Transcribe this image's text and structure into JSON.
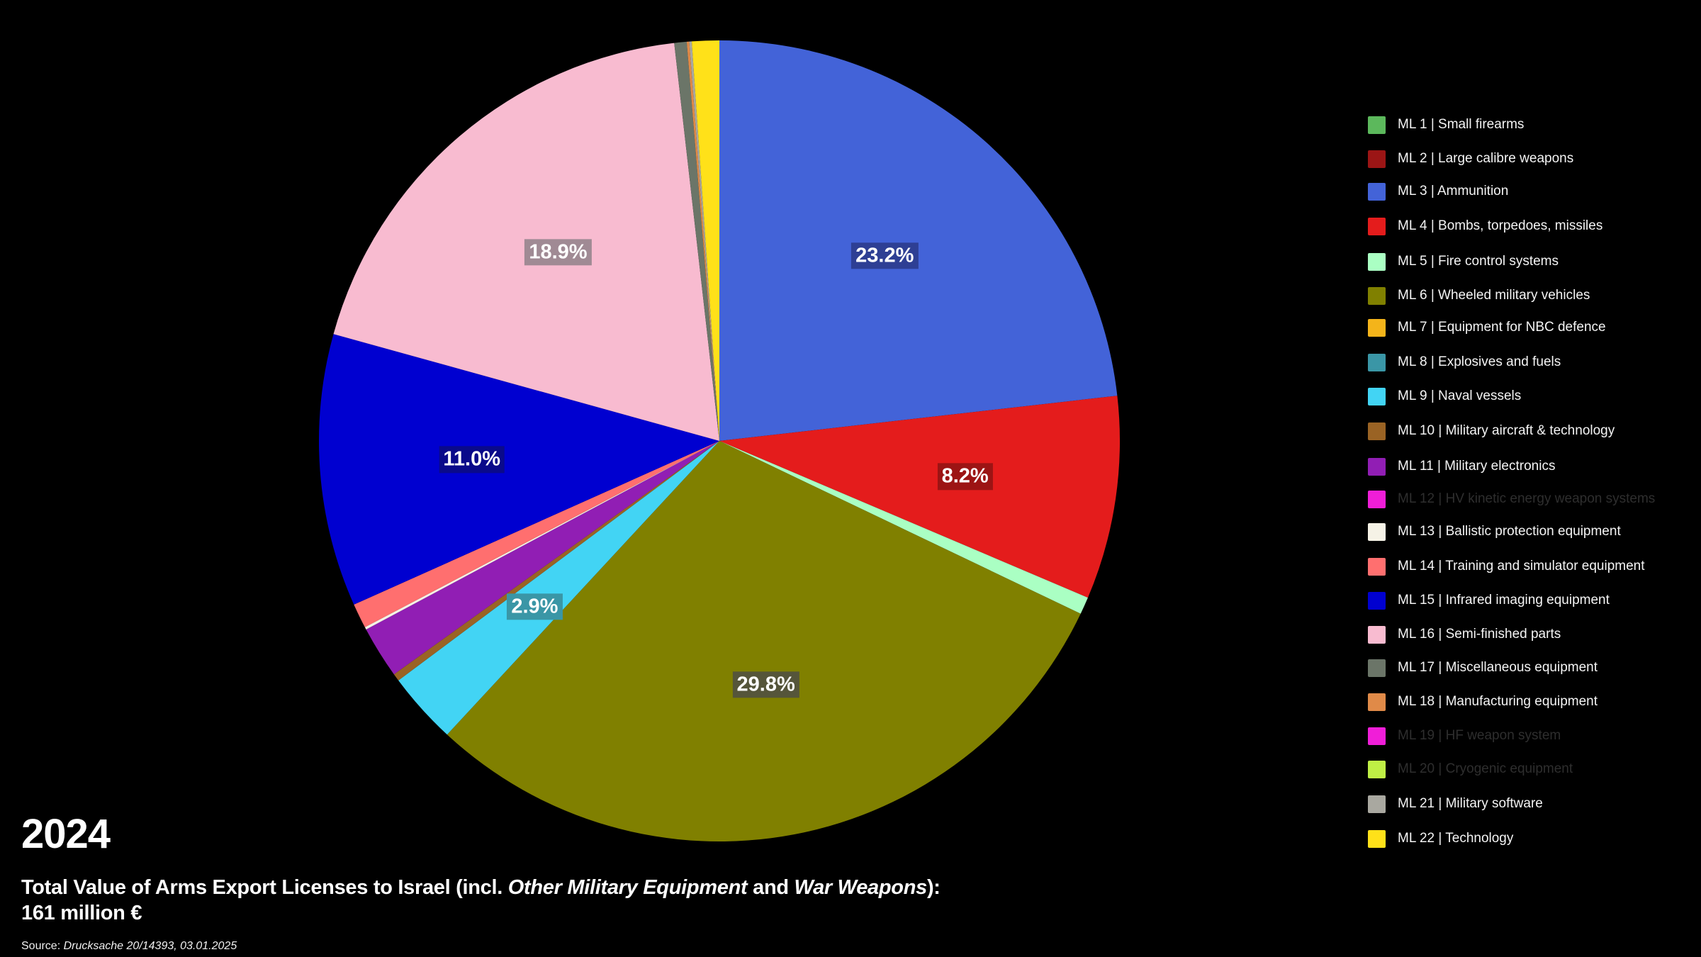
{
  "chart_data": {
    "type": "pie",
    "title": "Total Value of Arms Export Licenses to Israel (incl. Other Military Equipment and War Weapons): 161 million €",
    "year": "2024",
    "total": "161 million €",
    "start_angle_deg": 0,
    "direction": "clockwise",
    "legend_position": "right",
    "slices": [
      {
        "code": "ML 3",
        "label": "Ammunition",
        "value": 23.2,
        "color": "#4363d8",
        "show_label": true,
        "label_bg": "#2e3f94"
      },
      {
        "code": "ML 4",
        "label": "Bombs, torpedoes, missiles",
        "value": 8.2,
        "color": "#e41c1c",
        "show_label": true,
        "label_bg": "#9c1414"
      },
      {
        "code": "ML 5",
        "label": "Fire control systems",
        "value": 0.7,
        "color": "#aaffc3",
        "show_label": false
      },
      {
        "code": "ML 6",
        "label": "Wheeled military vehicles",
        "value": 29.8,
        "color": "#808000",
        "show_label": true,
        "label_bg": "#55553a"
      },
      {
        "code": "ML 9",
        "label": "Naval vessels",
        "value": 2.9,
        "color": "#42d4f4",
        "show_label": true,
        "label_bg": "#3a96a6"
      },
      {
        "code": "ML 10",
        "label": "Military aircraft & technology",
        "value": 0.3,
        "color": "#9a6324",
        "show_label": false
      },
      {
        "code": "ML 11",
        "label": "Military electronics",
        "value": 2.1,
        "color": "#911eb4",
        "show_label": false
      },
      {
        "code": "ML 13",
        "label": "Ballistic protection equipment",
        "value": 0.1,
        "color": "#f5f2e6",
        "show_label": false
      },
      {
        "code": "ML 14",
        "label": "Training and simulator equipment",
        "value": 1.0,
        "color": "#ff6f6f",
        "show_label": false
      },
      {
        "code": "ML 15",
        "label": "Infrared imaging equipment",
        "value": 11.0,
        "color": "#0000d0",
        "show_label": true,
        "label_bg": "#0a0a8a"
      },
      {
        "code": "ML 16",
        "label": "Semi-finished parts",
        "value": 18.9,
        "color": "#f8bbd0",
        "show_label": true,
        "label_bg": "#a08a94"
      },
      {
        "code": "ML 17",
        "label": "Miscellaneous equipment",
        "value": 0.5,
        "color": "#6b7568",
        "show_label": false
      },
      {
        "code": "ML 18",
        "label": "Manufacturing equipment",
        "value": 0.1,
        "color": "#e08a48",
        "show_label": false
      },
      {
        "code": "ML 21",
        "label": "Military software",
        "value": 0.1,
        "color": "#a9a8a0",
        "show_label": false
      },
      {
        "code": "ML 22",
        "label": "Technology",
        "value": 1.1,
        "color": "#ffe119",
        "show_label": false
      }
    ],
    "label_values": [
      "23.2%",
      "8.2%",
      "29.8%",
      "2.9%",
      "11.0%",
      "18.9%"
    ]
  },
  "legend": {
    "items": [
      {
        "text": "ML 1 | Small firearms",
        "color": "#5cb85c",
        "dim": false
      },
      {
        "text": "ML 2 | Large calibre weapons",
        "color": "#9b1515",
        "dim": false
      },
      {
        "text": "ML 3 | Ammunition",
        "color": "#4363d8",
        "dim": false
      },
      {
        "text": "ML 4 | Bombs, torpedoes, missiles",
        "color": "#e41c1c",
        "dim": false
      },
      {
        "text": "ML 5 | Fire control systems",
        "color": "#aaffc3",
        "dim": false
      },
      {
        "text": "ML 6 | Wheeled military vehicles",
        "color": "#808000",
        "dim": false
      },
      {
        "text": "ML 7 | Equipment for NBC defence",
        "color": "#f4b41a",
        "dim": false
      },
      {
        "text": "ML 8 | Explosives and fuels",
        "color": "#3a96a6",
        "dim": false
      },
      {
        "text": "ML 9 | Naval vessels",
        "color": "#42d4f4",
        "dim": false
      },
      {
        "text": "ML 10 | Military aircraft & technology",
        "color": "#9a6324",
        "dim": false
      },
      {
        "text": "ML 11 | Military electronics",
        "color": "#911eb4",
        "dim": false
      },
      {
        "text": "ML 12 | HV kinetic energy weapon systems",
        "color": "#f01ed8",
        "dim": true
      },
      {
        "text": "ML 13 | Ballistic protection equipment",
        "color": "#f5f2e6",
        "dim": false
      },
      {
        "text": "ML 14 | Training and simulator equipment",
        "color": "#ff6f6f",
        "dim": false
      },
      {
        "text": "ML 15 | Infrared imaging equipment",
        "color": "#0000d0",
        "dim": false
      },
      {
        "text": "ML 16 | Semi-finished parts",
        "color": "#f8bbd0",
        "dim": false
      },
      {
        "text": "ML 17 | Miscellaneous equipment",
        "color": "#6b7568",
        "dim": false
      },
      {
        "text": "ML 18 | Manufacturing equipment",
        "color": "#e08a48",
        "dim": false
      },
      {
        "text": "ML 19 | HF weapon system",
        "color": "#f01ed8",
        "dim": true
      },
      {
        "text": "ML 20 | Cryogenic equipment",
        "color": "#bfef45",
        "dim": true
      },
      {
        "text": "ML 21 | Military software",
        "color": "#a9a8a0",
        "dim": false
      },
      {
        "text": "ML 22 | Technology",
        "color": "#ffe119",
        "dim": false
      }
    ]
  },
  "footer": {
    "year": "2024",
    "title_part1": "Total Value of Arms Export Licenses to Israel (incl. ",
    "title_italic1": "Other Military Equipment",
    "title_part2": " and ",
    "title_italic2": "War Weapons",
    "title_part3": "):",
    "total": "161 million €",
    "source_prefix": "Source: ",
    "source_italic": "Drucksache 20/14393, 03.01.2025"
  }
}
